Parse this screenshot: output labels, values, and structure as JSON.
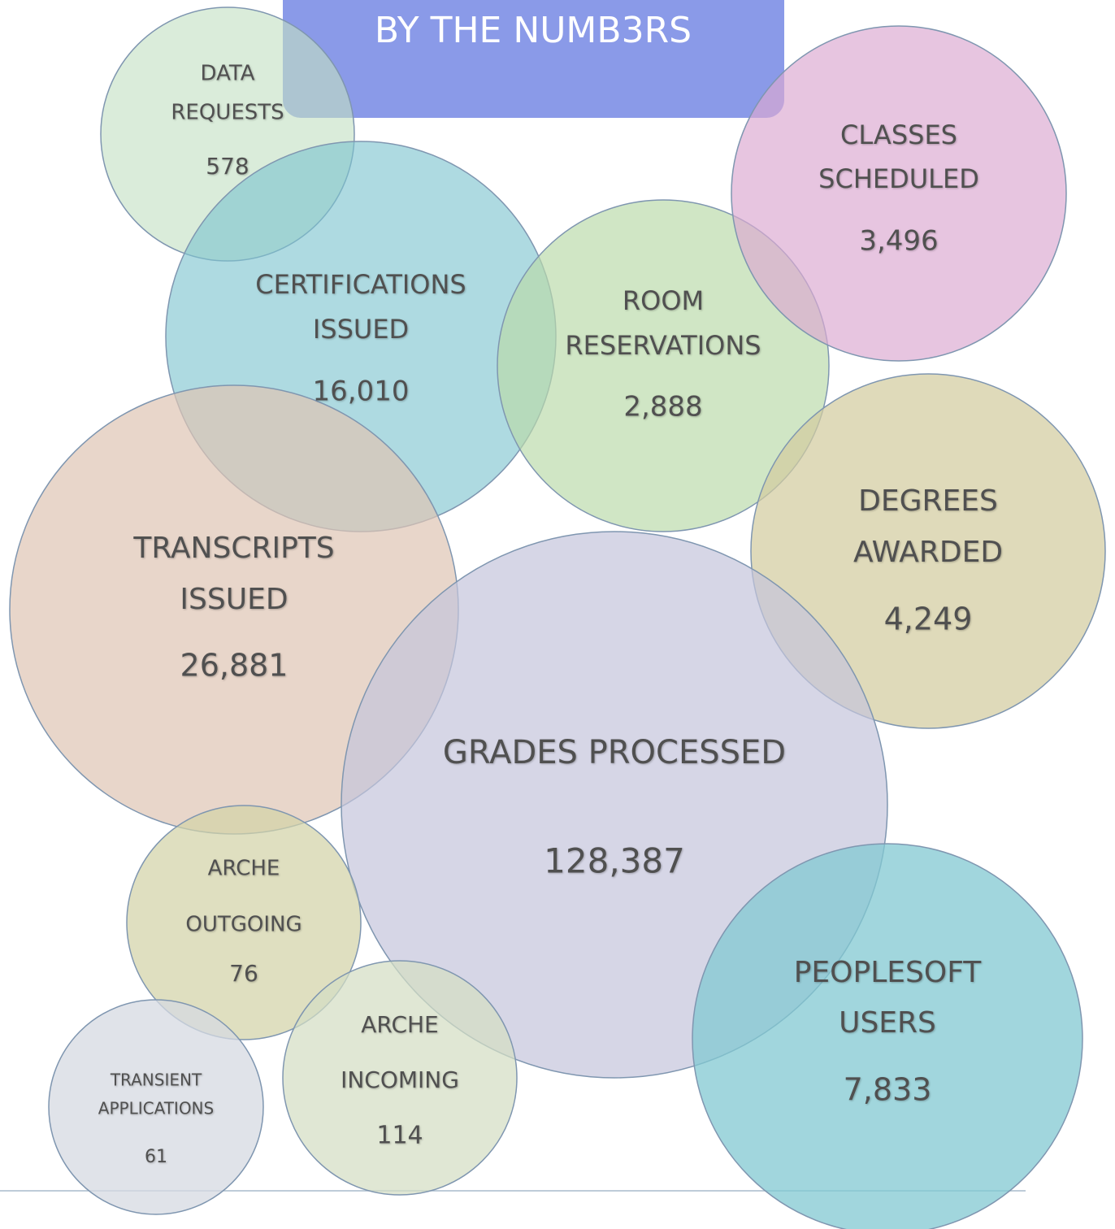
{
  "title": "BY THE NUMB3RS",
  "bubbles": [
    {
      "lines": [
        "DATA",
        "REQUESTS"
      ],
      "value": "578"
    },
    {
      "lines": [
        "CERTIFICATIONS",
        "ISSUED"
      ],
      "value": "16,010"
    },
    {
      "lines": [
        "ROOM",
        "RESERVATIONS"
      ],
      "value": "2,888"
    },
    {
      "lines": [
        "CLASSES",
        "SCHEDULED"
      ],
      "value": "3,496"
    },
    {
      "lines": [
        "DEGREES",
        "AWARDED"
      ],
      "value": "4,249"
    },
    {
      "lines": [
        "TRANSCRIPTS",
        "ISSUED"
      ],
      "value": "26,881"
    },
    {
      "lines": [
        "GRADES PROCESSED"
      ],
      "value": "128,387"
    },
    {
      "lines": [
        "ARCHE",
        "OUTGOING"
      ],
      "value": "76"
    },
    {
      "lines": [
        "TRANSIENT",
        "APPLICATIONS"
      ],
      "value": "61"
    },
    {
      "lines": [
        "ARCHE",
        "INCOMING"
      ],
      "value": "114"
    },
    {
      "lines": [
        "PEOPLESOFT",
        "USERS"
      ],
      "value": "7,833"
    }
  ]
}
